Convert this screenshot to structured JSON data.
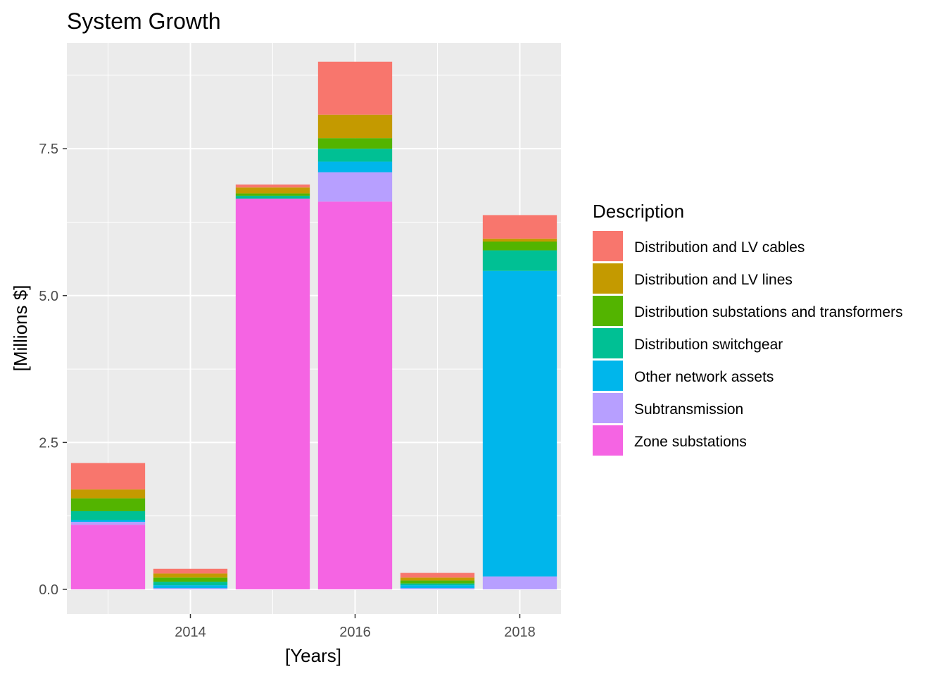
{
  "chart_data": {
    "type": "bar",
    "stacked": true,
    "title": "System Growth",
    "xlabel": "[Years]",
    "ylabel": "[Millions $]",
    "xlim": [
      2012.5,
      2018.5
    ],
    "ylim": [
      -0.42,
      9.3
    ],
    "x_ticks": [
      2014,
      2016,
      2018
    ],
    "y_ticks": [
      0,
      2.5,
      5,
      7.5
    ],
    "y_tick_labels": [
      "0.0",
      "2.5",
      "5.0",
      "7.5"
    ],
    "grid": true,
    "legend_title": "Description",
    "legend_position": "right",
    "x": [
      2013,
      2014,
      2015,
      2016,
      2017,
      2018
    ],
    "series": [
      {
        "name": "Zone substations",
        "color": "#F564E3",
        "values": [
          1.1,
          0.0,
          6.65,
          6.6,
          0.0,
          0.0
        ]
      },
      {
        "name": "Subtransmission",
        "color": "#B79FFF",
        "values": [
          0.05,
          0.02,
          0.0,
          0.5,
          0.02,
          0.22
        ]
      },
      {
        "name": "Other network assets",
        "color": "#00B6EB",
        "values": [
          0.03,
          0.05,
          0.0,
          0.18,
          0.05,
          5.2
        ]
      },
      {
        "name": "Distribution switchgear",
        "color": "#00C094",
        "values": [
          0.15,
          0.06,
          0.05,
          0.22,
          0.03,
          0.35
        ]
      },
      {
        "name": "Distribution substations and transformers",
        "color": "#53B400",
        "values": [
          0.22,
          0.07,
          0.04,
          0.18,
          0.05,
          0.15
        ]
      },
      {
        "name": "Distribution and LV lines",
        "color": "#C49A00",
        "values": [
          0.15,
          0.07,
          0.1,
          0.4,
          0.05,
          0.05
        ]
      },
      {
        "name": "Distribution and LV cables",
        "color": "#F8766D",
        "values": [
          0.45,
          0.08,
          0.05,
          0.9,
          0.08,
          0.4
        ]
      }
    ],
    "legend_order": [
      "Distribution and LV cables",
      "Distribution and LV lines",
      "Distribution substations and transformers",
      "Distribution switchgear",
      "Other network assets",
      "Subtransmission",
      "Zone substations"
    ]
  }
}
